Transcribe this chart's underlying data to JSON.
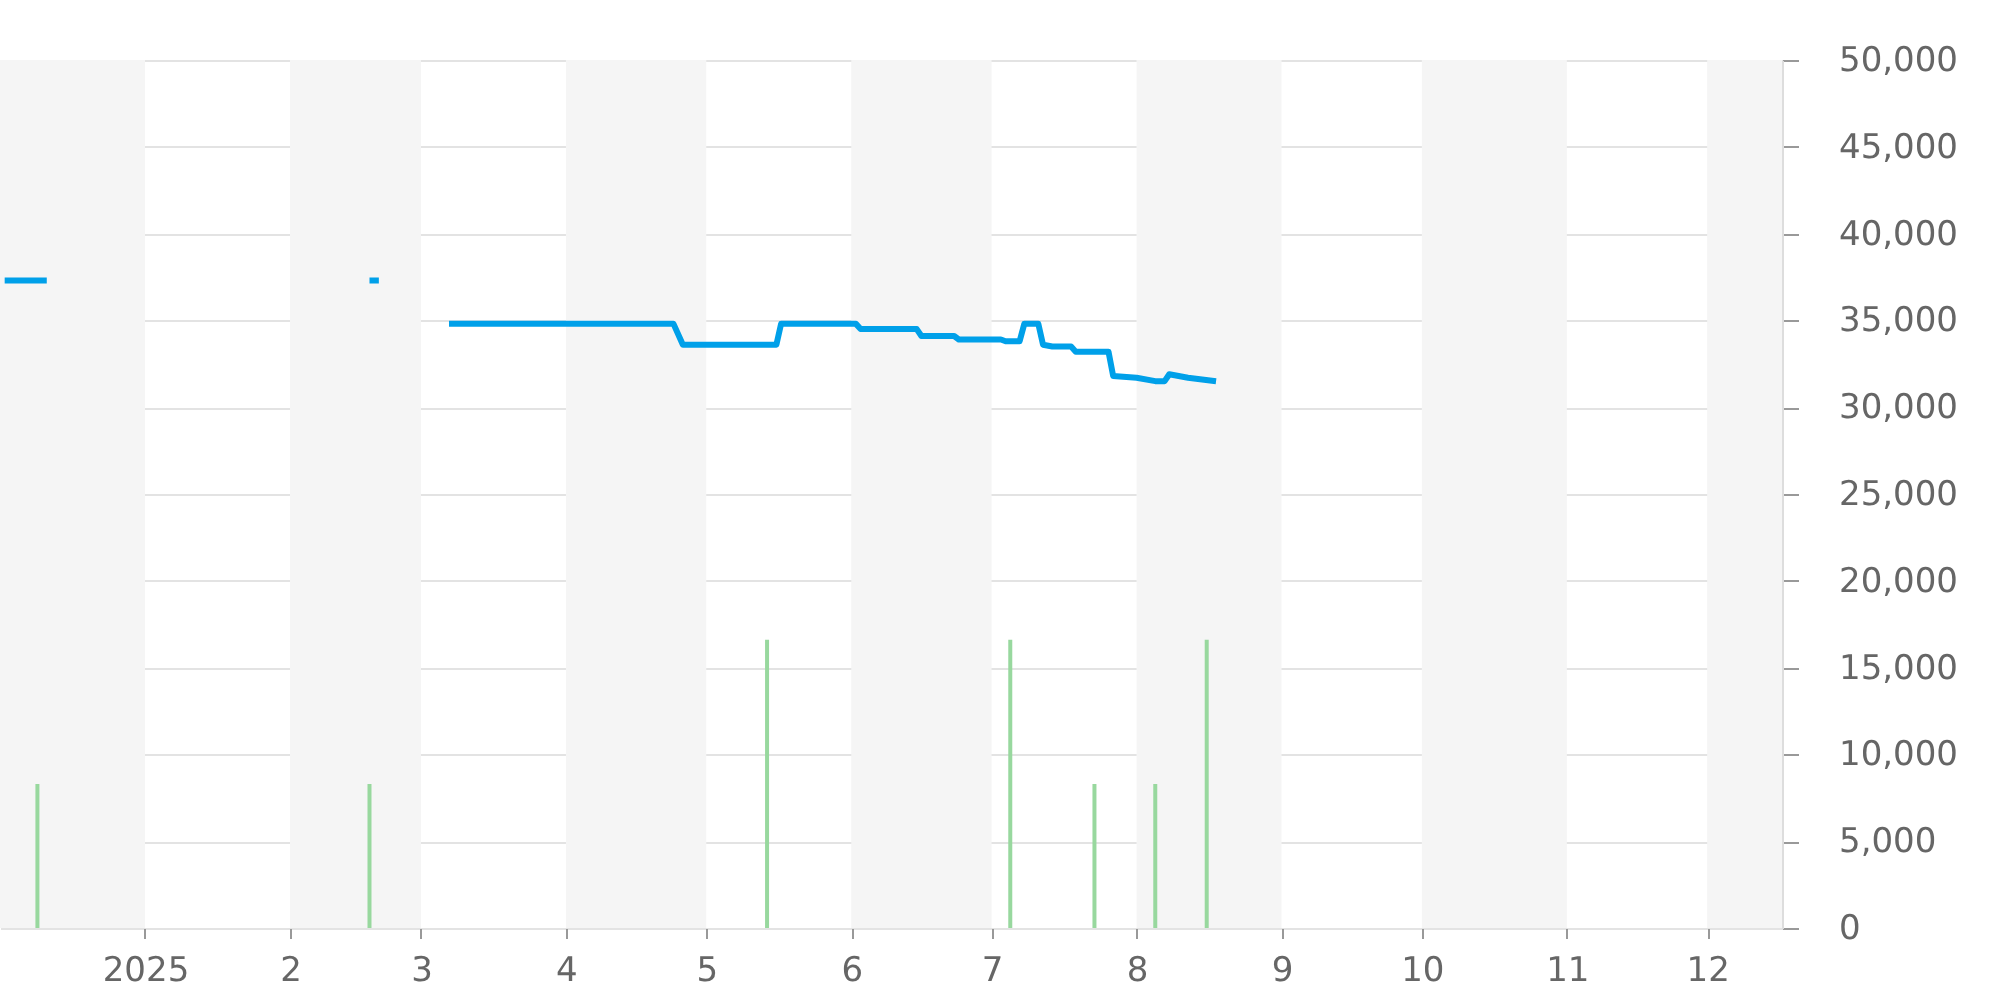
{
  "chart_data": {
    "type": "line",
    "xlim": [
      "2024-12-01",
      "2025-12-17"
    ],
    "xticks": [
      {
        "value": "2025-01-01",
        "label": "2025"
      },
      {
        "value": "2025-02-01",
        "label": "2"
      },
      {
        "value": "2025-03-01",
        "label": "3"
      },
      {
        "value": "2025-04-01",
        "label": "4"
      },
      {
        "value": "2025-05-01",
        "label": "5"
      },
      {
        "value": "2025-06-01",
        "label": "6"
      },
      {
        "value": "2025-07-01",
        "label": "7"
      },
      {
        "value": "2025-08-01",
        "label": "8"
      },
      {
        "value": "2025-09-01",
        "label": "9"
      },
      {
        "value": "2025-10-01",
        "label": "10"
      },
      {
        "value": "2025-11-01",
        "label": "11"
      },
      {
        "value": "2025-12-01",
        "label": "12"
      }
    ],
    "ylim": [
      0,
      50000
    ],
    "yticks": [
      0,
      {
        "value": 5000,
        "label": "5,000"
      },
      {
        "value": 10000,
        "label": "10,000"
      },
      {
        "value": 15000,
        "label": "15,000"
      },
      {
        "value": 20000,
        "label": "20,000"
      },
      {
        "value": 25000,
        "label": "25,000"
      },
      {
        "value": 30000,
        "label": "30,000"
      },
      {
        "value": 35000,
        "label": "35,000"
      },
      {
        "value": 40000,
        "label": "40,000"
      },
      {
        "value": 45000,
        "label": "45,000"
      },
      {
        "value": 50000,
        "label": "50,000"
      }
    ],
    "grid": "y",
    "series": [
      {
        "color": "#00a0e9",
        "x": [
          "2024-12-02",
          "2024-12-11",
          "2025-01-15",
          "2025-02-18",
          "2025-02-20",
          "2025-03-01",
          "2025-03-07",
          "2025-04-24",
          "2025-04-26",
          "2025-05-16",
          "2025-05-17",
          "2025-06-02",
          "2025-06-03",
          "2025-06-15",
          "2025-06-16",
          "2025-06-23",
          "2025-06-24",
          "2025-07-03",
          "2025-07-04",
          "2025-07-07",
          "2025-07-08",
          "2025-07-11",
          "2025-07-12",
          "2025-07-14",
          "2025-07-18",
          "2025-07-19",
          "2025-07-26",
          "2025-07-27",
          "2025-08-01",
          "2025-08-05",
          "2025-08-07",
          "2025-08-08",
          "2025-08-10",
          "2025-08-12",
          "2025-08-15",
          "2025-08-18"
        ],
        "values": [
          37300,
          37300,
          null,
          37300,
          37300,
          null,
          34800,
          34800,
          33600,
          33600,
          34800,
          34800,
          34500,
          34500,
          34100,
          34100,
          33900,
          33900,
          33800,
          33800,
          34800,
          34800,
          33600,
          33500,
          33500,
          33200,
          33200,
          31800,
          31700,
          31500,
          31500,
          31900,
          31800,
          31700,
          31600,
          31500
        ]
      },
      {
        "type": "bar",
        "color": "#98d89e",
        "x": [
          "2024-12-09",
          "2025-02-18",
          "2025-05-14",
          "2025-07-05",
          "2025-07-23",
          "2025-08-05",
          "2025-08-16"
        ],
        "values": [
          8300,
          8300,
          16600,
          16600,
          8300,
          8300,
          16600
        ]
      }
    ],
    "bands": [
      {
        "axis": "x",
        "from": "2024-12-01",
        "to": "2025-01-01",
        "color": "#f5f5f5"
      },
      {
        "axis": "x",
        "from": "2025-02-01",
        "to": "2025-03-01",
        "color": "#f5f5f5"
      },
      {
        "axis": "x",
        "from": "2025-04-01",
        "to": "2025-05-01",
        "color": "#f5f5f5"
      },
      {
        "axis": "x",
        "from": "2025-06-01",
        "to": "2025-07-01",
        "color": "#f5f5f5"
      },
      {
        "axis": "x",
        "from": "2025-08-01",
        "to": "2025-09-01",
        "color": "#f5f5f5"
      },
      {
        "axis": "x",
        "from": "2025-10-01",
        "to": "2025-11-01",
        "color": "#f5f5f5"
      },
      {
        "axis": "x",
        "from": "2025-12-01",
        "to": "2025-12-17",
        "color": "#f5f5f5"
      }
    ]
  }
}
